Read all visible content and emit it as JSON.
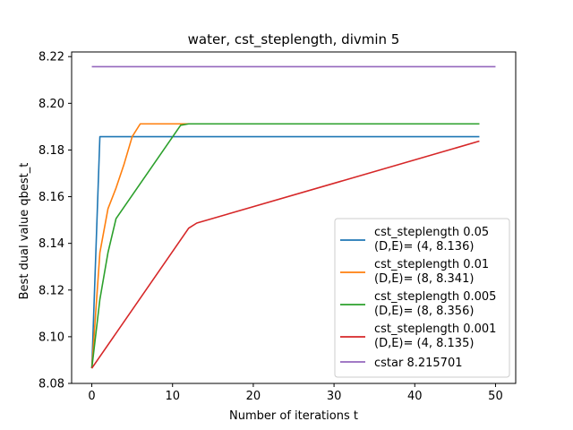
{
  "chart_data": {
    "type": "line",
    "title": "water, cst_steplength, divmin 5",
    "xlabel": "Number of iterations t",
    "ylabel": "Best dual value qbest_t",
    "xlim": [
      -2.5,
      52.5
    ],
    "ylim": [
      8.08,
      8.222
    ],
    "xticks": [
      0,
      10,
      20,
      30,
      40,
      50
    ],
    "xtick_labels": [
      "0",
      "10",
      "20",
      "30",
      "40",
      "50"
    ],
    "yticks": [
      8.08,
      8.1,
      8.12,
      8.14,
      8.16,
      8.18,
      8.2,
      8.22
    ],
    "ytick_labels": [
      "8.08",
      "8.10",
      "8.12",
      "8.14",
      "8.16",
      "8.18",
      "8.20",
      "8.22"
    ],
    "grid": false,
    "legend_position": "lower-right",
    "series": [
      {
        "name": "cst_steplength 0.05",
        "name_line2": "(D,E)= (4, 8.136)",
        "color": "#1f77b4",
        "x": [
          0,
          1,
          48
        ],
        "y": [
          8.0865,
          8.1857,
          8.1857
        ]
      },
      {
        "name": "cst_steplength 0.01",
        "name_line2": "(D,E)= (8, 8.341)",
        "color": "#ff7f0e",
        "x": [
          0,
          1,
          2,
          3,
          4,
          5,
          6,
          11,
          48
        ],
        "y": [
          8.0865,
          8.136,
          8.1548,
          8.1637,
          8.174,
          8.1857,
          8.1912,
          8.1912,
          8.1912
        ]
      },
      {
        "name": "cst_steplength 0.005",
        "name_line2": "(D,E)= (8, 8.356)",
        "color": "#2ca02c",
        "x": [
          0,
          1,
          2,
          3,
          11,
          12,
          48
        ],
        "y": [
          8.0865,
          8.116,
          8.136,
          8.1506,
          8.1906,
          8.1912,
          8.1912
        ]
      },
      {
        "name": "cst_steplength 0.001",
        "name_line2": "(D,E)= (4, 8.135)",
        "color": "#d62728",
        "x": [
          0,
          12,
          13,
          48
        ],
        "y": [
          8.0865,
          8.1465,
          8.1487,
          8.1838
        ]
      },
      {
        "name": "cstar 8.215701",
        "name_line2": "",
        "color": "#9467bd",
        "x": [
          0,
          50
        ],
        "y": [
          8.215701,
          8.215701
        ]
      }
    ]
  }
}
